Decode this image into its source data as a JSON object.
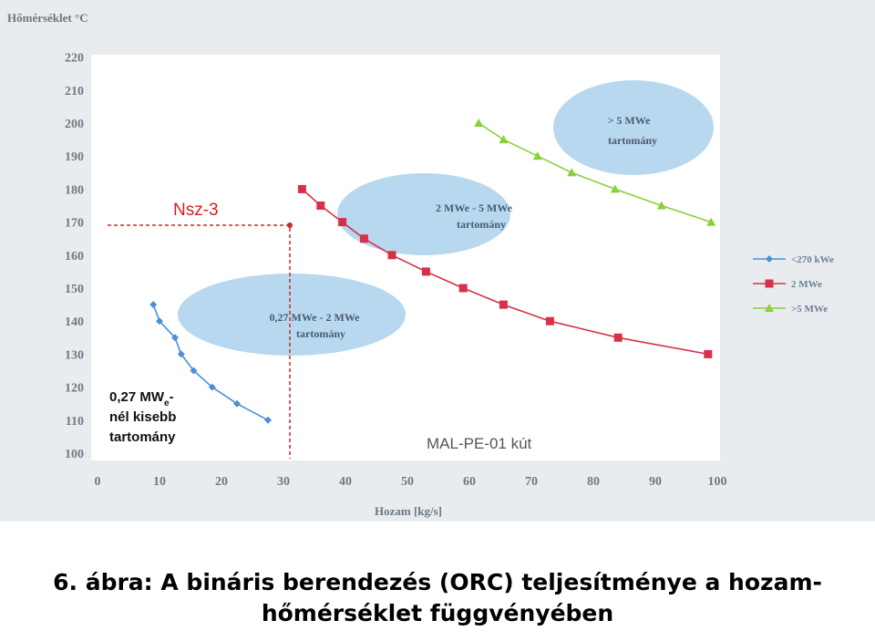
{
  "chart_data": {
    "type": "line",
    "ylabel": "Hőmérséklet °C",
    "xlabel": "Hozam [kg/s]",
    "xlim": [
      0,
      100
    ],
    "ylim": [
      100,
      220
    ],
    "xticks": [
      0,
      10,
      20,
      30,
      40,
      50,
      60,
      70,
      80,
      90,
      100
    ],
    "yticks": [
      100,
      110,
      120,
      130,
      140,
      150,
      160,
      170,
      180,
      190,
      200,
      210,
      220
    ],
    "legend_position": "right",
    "series": [
      {
        "name": "<270 kWe",
        "color": "#4a90d9",
        "marker": "diamond",
        "x": [
          9,
          10,
          12.5,
          13.5,
          15.5,
          18.5,
          22.5,
          27.5
        ],
        "y": [
          145,
          140,
          135,
          130,
          125,
          120,
          115,
          110
        ]
      },
      {
        "name": "2 MWe",
        "color": "#d9304a",
        "marker": "square",
        "x": [
          33,
          36,
          39.5,
          43,
          47.5,
          53,
          59,
          65.5,
          73,
          84,
          98.5
        ],
        "y": [
          180,
          175,
          170,
          165,
          160,
          155,
          150,
          145,
          140,
          135,
          130
        ]
      },
      {
        "name": ">5 MWe",
        "color": "#8ccf3a",
        "marker": "triangle",
        "x": [
          61.5,
          65.5,
          71,
          76.5,
          83.5,
          91,
          99
        ],
        "y": [
          200,
          195,
          190,
          185,
          180,
          175,
          170
        ]
      }
    ],
    "regions": [
      {
        "line1": "0,27 MWe - 2 MWe",
        "line2": "tartomány"
      },
      {
        "line1": "2 MWe - 5 MWe",
        "line2": "tartomány"
      },
      {
        "line1": "> 5 MWe",
        "line2": "tartomány"
      }
    ],
    "annotations": {
      "nsz": "Nsz-3",
      "mal": "MAL-PE-01 kút",
      "small_line1": "0,27 MW",
      "small_sub": "e",
      "small_dash": "-",
      "small_line2": "nél kisebb",
      "small_line3": "tartomány"
    }
  },
  "caption": {
    "line1": "6. ábra: A bináris berendezés (ORC) teljesítménye a hozam-",
    "line2": "hőmérséklet függvényében"
  }
}
